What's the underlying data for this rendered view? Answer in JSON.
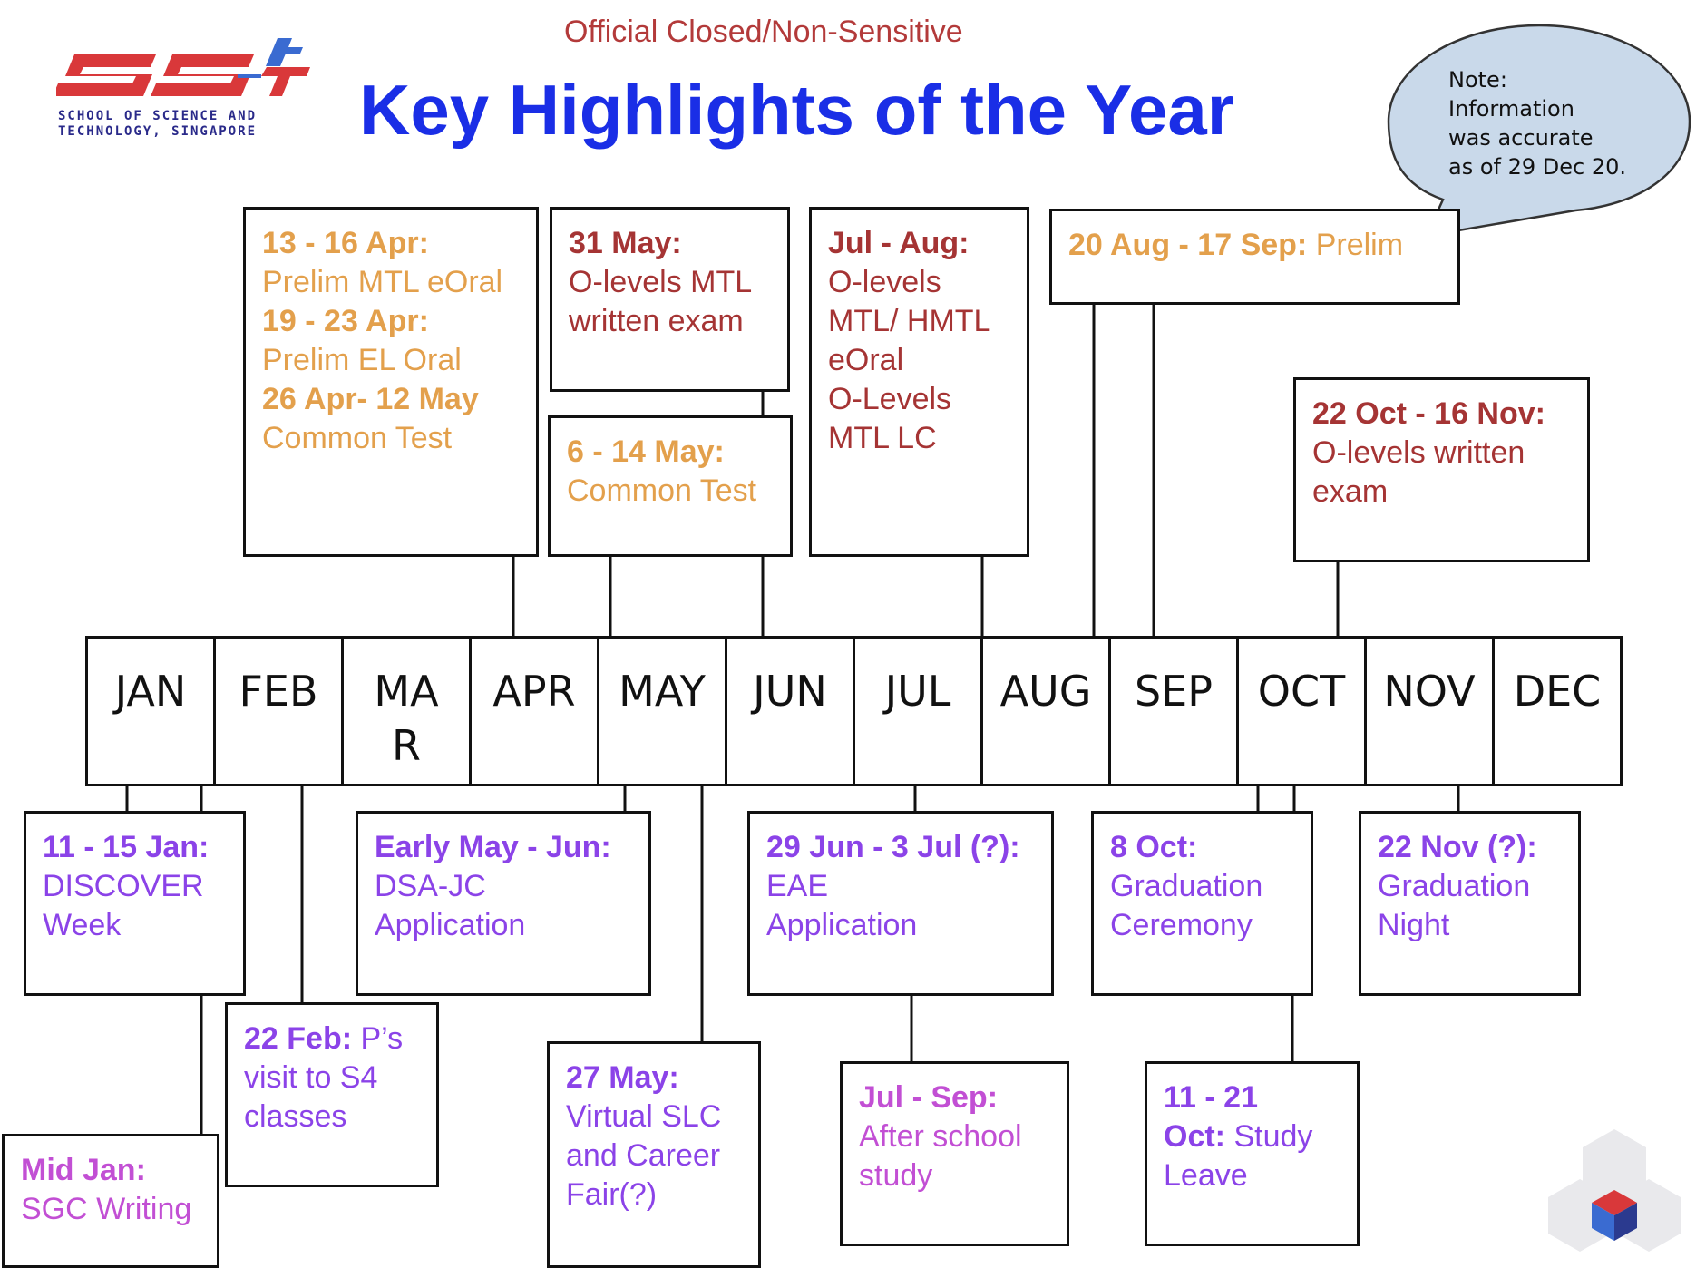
{
  "header": {
    "banner": "Official Closed/Non-Sensitive",
    "title": "Key Highlights of the Year",
    "logo": {
      "mark": "SST",
      "line1": "SCHOOL OF SCIENCE AND",
      "line2": "TECHNOLOGY, SINGAPORE",
      "colors": {
        "red": "#d9383a",
        "blue": "#3a6bd1"
      }
    }
  },
  "note": {
    "line1": "Note:",
    "line2": "Information",
    "line3": "was accurate",
    "line4": "as of 29 Dec 20."
  },
  "months": [
    "JAN",
    "FEB",
    "MAR",
    "APR",
    "MAY",
    "JUN",
    "JUL",
    "AUG",
    "SEP",
    "OCT",
    "NOV",
    "DEC"
  ],
  "events": {
    "prelim_apr": {
      "d1": "13 - 16 Apr:",
      "t1": "Prelim MTL eOral",
      "d2": "19 - 23 Apr:",
      "t2": "Prelim EL Oral",
      "d3": "26 Apr- 12 May",
      "t3": "Common Test"
    },
    "may31": {
      "d": "31 May:",
      "t1": "O-levels MTL",
      "t2": "written exam"
    },
    "may6": {
      "d": "6 - 14 May:",
      "t": "Common Test"
    },
    "julaug": {
      "d": "Jul - Aug:",
      "t1": "O-levels",
      "t2": "MTL/ HMTL",
      "t3": "eOral",
      "t4": "O-Levels",
      "t5": "MTL LC"
    },
    "prelim_aug": {
      "d": "20 Aug - 17 Sep:",
      "t": " Prelim"
    },
    "oct22": {
      "d": "22 Oct - 16 Nov:",
      "t1": "O-levels written",
      "t2": "exam"
    },
    "jan11": {
      "d": "11 - 15 Jan:",
      "t1": "DISCOVER",
      "t2": "Week"
    },
    "earlymay": {
      "d": "Early May - Jun:",
      "t1": "DSA-JC",
      "t2": "Application"
    },
    "jun29": {
      "d": "29 Jun - 3 Jul (?):",
      "t1": "EAE",
      "t2": "Application"
    },
    "oct8": {
      "d": "8 Oct:",
      "t1": "Graduation",
      "t2": "Ceremony"
    },
    "nov22": {
      "d": "22 Nov (?):",
      "t1": "Graduation",
      "t2": "Night"
    },
    "feb22": {
      "d": "22 Feb:",
      "t0": " P’s",
      "t1": "visit to S4",
      "t2": "classes"
    },
    "midjan": {
      "d": "Mid Jan:",
      "t": "SGC Writing"
    },
    "may27": {
      "d": "27 May:",
      "t1": "Virtual SLC",
      "t2": "and Career",
      "t3": "Fair(?)"
    },
    "julsep": {
      "d": "Jul - Sep:",
      "t1": "After school",
      "t2": "study"
    },
    "oct11": {
      "d1": "11 - 21",
      "d2": "Oct:",
      "t": " Study",
      "t2": "Leave"
    }
  },
  "colors": {
    "orange": "#e3a04c",
    "red": "#a53434",
    "purple": "#8b43e8",
    "magenta": "#c24fd4",
    "title_blue": "#1a2ee6"
  }
}
